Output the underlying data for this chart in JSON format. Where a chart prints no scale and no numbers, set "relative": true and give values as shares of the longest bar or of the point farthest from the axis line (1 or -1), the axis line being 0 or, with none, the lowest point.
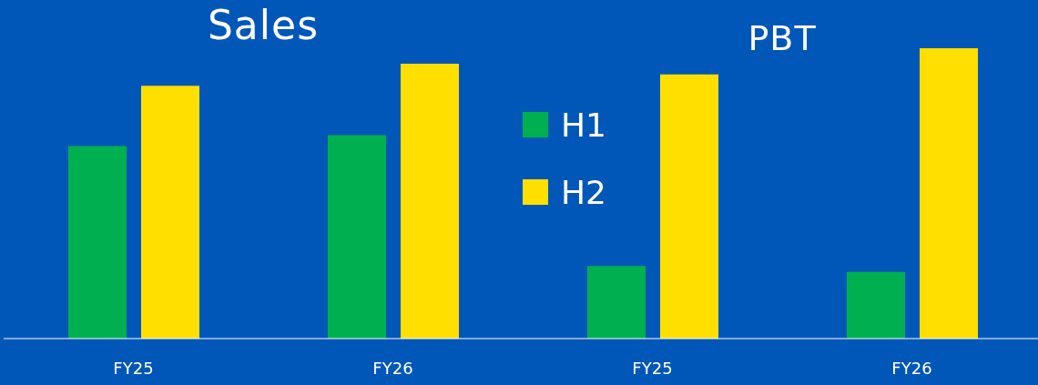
{
  "chart_data": [
    {
      "type": "bar",
      "title": "Sales",
      "relative": true,
      "categories": [
        "FY25",
        "FY26"
      ],
      "legend": false,
      "series": [
        {
          "color": "#00b050",
          "values": [
            0.7,
            0.74
          ]
        },
        {
          "color": "#ffdf00",
          "values": [
            0.92,
            1
          ]
        }
      ]
    },
    {
      "type": "bar",
      "title": "PBT",
      "relative": true,
      "categories": [
        "FY25",
        "FY26"
      ],
      "legend": "top left",
      "series": [
        {
          "name": "H1",
          "color": "#00b050",
          "values": [
            0.25,
            0.23
          ]
        },
        {
          "name": "H2",
          "color": "#ffdf00",
          "values": [
            0.91,
            1
          ]
        }
      ]
    }
  ]
}
